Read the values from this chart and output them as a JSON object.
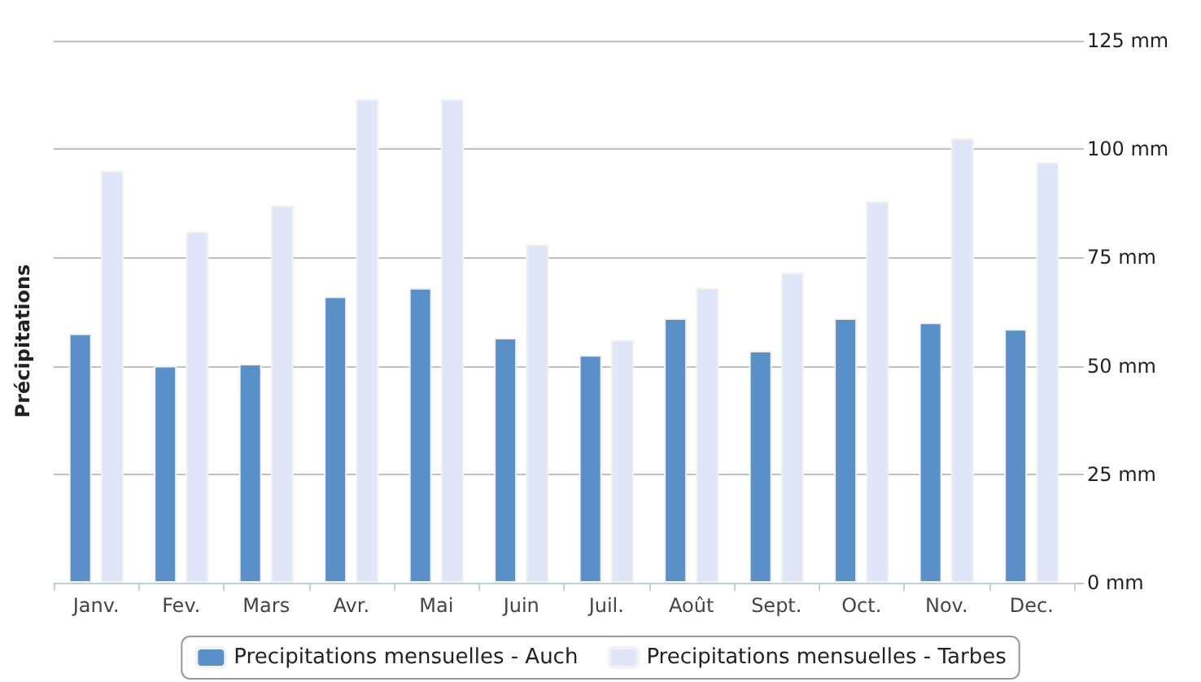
{
  "chart_data": {
    "type": "bar",
    "ylabel": "Précipitations",
    "categories": [
      "Janv.",
      "Fev.",
      "Mars",
      "Avr.",
      "Mai",
      "Juin",
      "Juil.",
      "Août",
      "Sept.",
      "Oct.",
      "Nov.",
      "Dec."
    ],
    "series": [
      {
        "name": "Precipitations mensuelles - Auch",
        "color": "#5b8fc7",
        "values": [
          57.5,
          50,
          50.5,
          66,
          68,
          56.5,
          52.5,
          61,
          53.5,
          61,
          60,
          58.5
        ]
      },
      {
        "name": "Precipitations mensuelles - Tarbes",
        "color": "#e0e5f7",
        "values": [
          95,
          81,
          87,
          111.5,
          111.5,
          78,
          56,
          68,
          71.5,
          88,
          102.5,
          97
        ]
      }
    ],
    "ylim": [
      0,
      125
    ],
    "yticks": [
      {
        "value": 0,
        "label": "0 mm"
      },
      {
        "value": 25,
        "label": "25 mm"
      },
      {
        "value": 50,
        "label": "50 mm"
      },
      {
        "value": 75,
        "label": "75 mm"
      },
      {
        "value": 100,
        "label": "100 mm"
      },
      {
        "value": 125,
        "label": "125 mm"
      }
    ],
    "grid": "y",
    "legend": "bottom"
  }
}
